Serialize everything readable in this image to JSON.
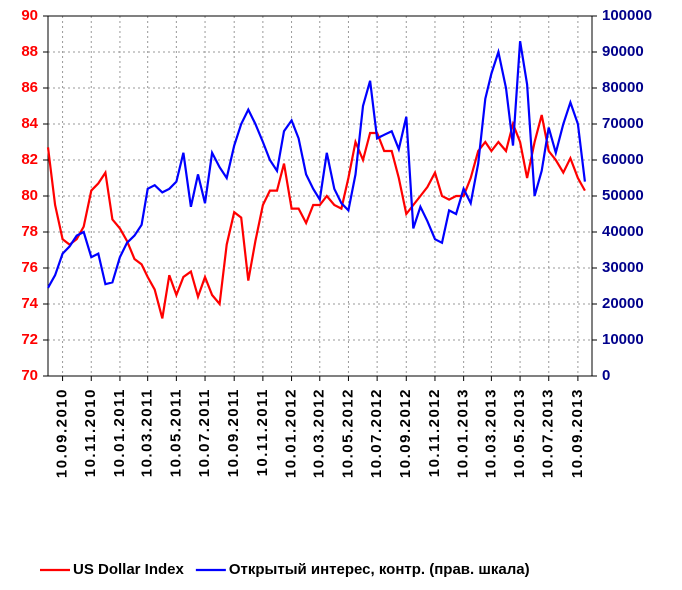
{
  "chart_data": {
    "type": "line",
    "x": [
      "10.08.2010",
      "25.08.2010",
      "10.09.2010",
      "25.09.2010",
      "10.10.2010",
      "25.10.2010",
      "10.11.2010",
      "25.11.2010",
      "10.12.2010",
      "25.12.2010",
      "10.01.2011",
      "25.01.2011",
      "10.02.2011",
      "25.02.2011",
      "10.03.2011",
      "25.03.2011",
      "10.04.2011",
      "25.04.2011",
      "10.05.2011",
      "25.05.2011",
      "10.06.2011",
      "25.06.2011",
      "10.07.2011",
      "25.07.2011",
      "10.08.2011",
      "25.08.2011",
      "10.09.2011",
      "25.09.2011",
      "10.10.2011",
      "25.10.2011",
      "10.11.2011",
      "25.11.2011",
      "10.12.2011",
      "25.12.2011",
      "10.01.2012",
      "25.01.2012",
      "10.02.2012",
      "25.02.2012",
      "10.03.2012",
      "25.03.2012",
      "10.04.2012",
      "25.04.2012",
      "10.05.2012",
      "25.05.2012",
      "10.06.2012",
      "25.06.2012",
      "10.07.2012",
      "25.07.2012",
      "10.08.2012",
      "25.08.2012",
      "10.09.2012",
      "25.09.2012",
      "10.10.2012",
      "25.10.2012",
      "10.11.2012",
      "25.11.2012",
      "10.12.2012",
      "25.12.2012",
      "10.01.2013",
      "25.01.2013",
      "10.02.2013",
      "25.02.2013",
      "10.03.2013",
      "25.03.2013",
      "10.04.2013",
      "25.04.2013",
      "10.05.2013",
      "25.05.2013",
      "10.06.2013",
      "25.06.2013",
      "10.07.2013",
      "25.07.2013",
      "10.08.2013",
      "25.08.2013",
      "10.09.2013",
      "25.09.2013"
    ],
    "series": [
      {
        "name": "US Dollar Index",
        "color": "#ff0000",
        "axis": "y",
        "values": [
          82.7,
          79.5,
          77.6,
          77.3,
          77.6,
          78.3,
          80.3,
          80.7,
          81.3,
          78.7,
          78.2,
          77.5,
          76.5,
          76.2,
          75.5,
          74.8,
          73.2,
          75.6,
          74.5,
          75.5,
          75.8,
          74.4,
          75.5,
          74.5,
          74,
          77.3,
          79.1,
          78.8,
          75.3,
          77.5,
          79.5,
          80.3,
          80.3,
          81.8,
          79.3,
          79.3,
          78.5,
          79.5,
          79.5,
          80,
          79.5,
          79.3,
          81,
          83,
          82,
          83.5,
          83.5,
          82.5,
          82.5,
          81,
          79,
          79.5,
          80,
          80.5,
          81.3,
          80,
          79.8,
          80,
          80,
          81,
          82.5,
          83,
          82.5,
          83,
          82.5,
          84,
          83,
          81,
          83,
          84.5,
          82.5,
          82,
          81.3,
          82.1,
          81,
          80.3
        ]
      },
      {
        "name": "Открытый интерес, контр. (прав. шкала)",
        "color": "#0000ff",
        "axis": "y2",
        "values": [
          24500,
          28000,
          34000,
          36000,
          39000,
          40000,
          33000,
          34000,
          25500,
          26000,
          33000,
          37000,
          39000,
          42000,
          52000,
          53000,
          51000,
          52000,
          54000,
          62000,
          47000,
          56000,
          48000,
          62000,
          58000,
          55000,
          64000,
          70000,
          74000,
          70000,
          65000,
          60000,
          57000,
          68000,
          71000,
          66000,
          56000,
          52000,
          49000,
          62000,
          52000,
          48000,
          46000,
          56000,
          75000,
          82000,
          66000,
          67000,
          68000,
          63000,
          72000,
          41000,
          47000,
          43000,
          38000,
          37000,
          46000,
          45000,
          52000,
          48000,
          59000,
          77000,
          84000,
          90000,
          80000,
          64000,
          93000,
          81000,
          50000,
          57000,
          69000,
          62000,
          70000,
          76000,
          70000,
          54000
        ]
      }
    ],
    "xlim": [
      "10.08.2010",
      "10.10.2013"
    ],
    "xticks": [
      "10.09.2010",
      "10.11.2010",
      "10.01.2011",
      "10.03.2011",
      "10.05.2011",
      "10.07.2011",
      "10.09.2011",
      "10.11.2011",
      "10.01.2012",
      "10.03.2012",
      "10.05.2012",
      "10.07.2012",
      "10.09.2012",
      "10.11.2012",
      "10.01.2013",
      "10.03.2013",
      "10.05.2013",
      "10.07.2013",
      "10.09.2013"
    ],
    "ylim": [
      70,
      90
    ],
    "yticks": [
      70,
      72,
      74,
      76,
      78,
      80,
      82,
      84,
      86,
      88,
      90
    ],
    "y2lim": [
      0,
      100000
    ],
    "y2ticks": [
      0,
      10000,
      20000,
      30000,
      40000,
      50000,
      60000,
      70000,
      80000,
      90000,
      100000
    ],
    "grid": true,
    "legend": "bottom"
  }
}
